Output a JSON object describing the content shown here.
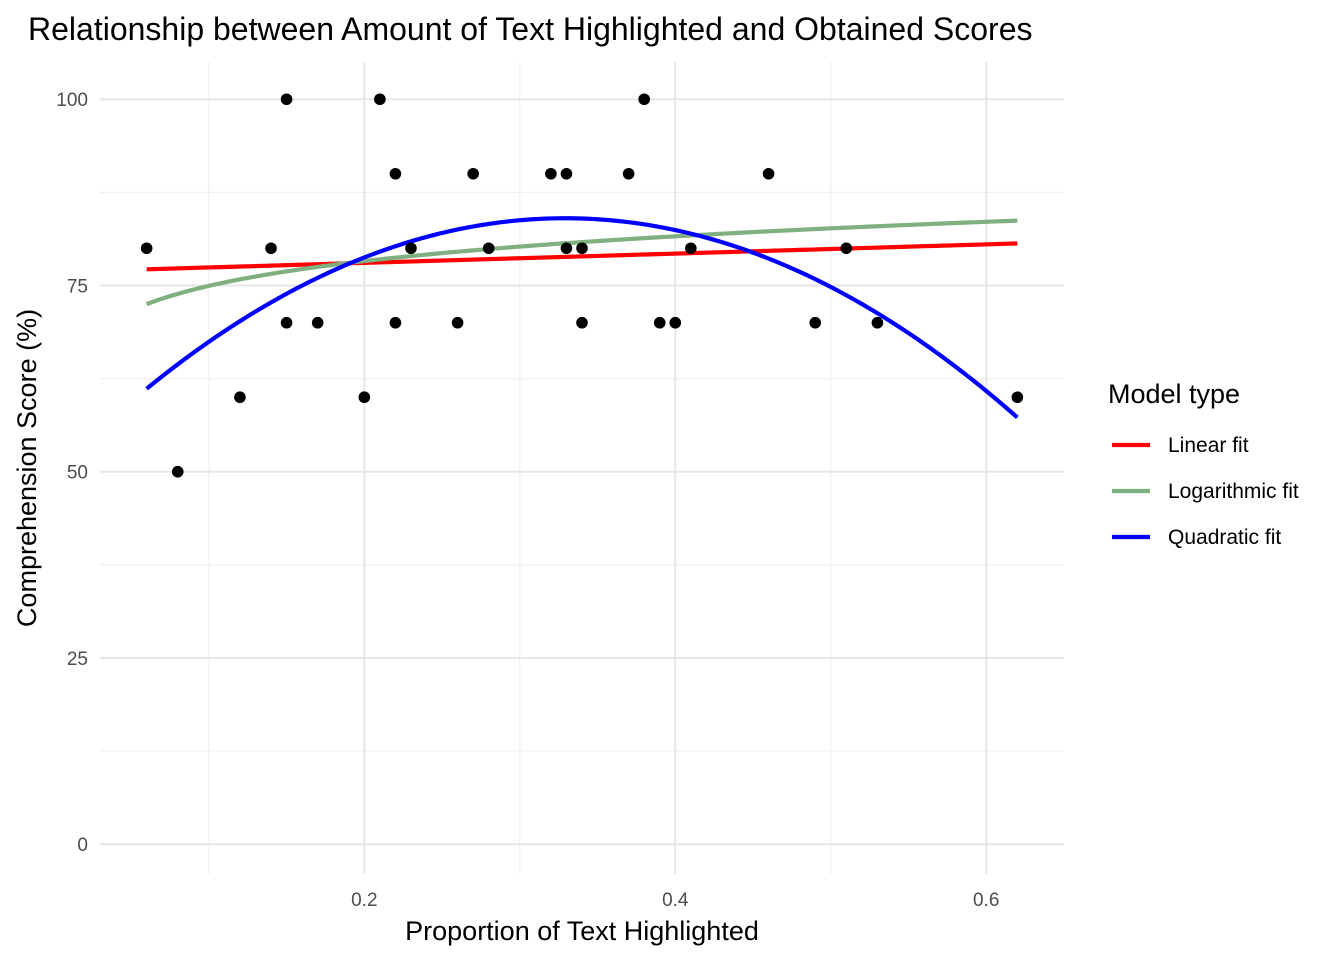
{
  "chart_data": {
    "type": "scatter",
    "title": "Relationship between Amount of Text Highlighted and Obtained Scores",
    "xlabel": "Proportion of Text Highlighted",
    "ylabel": "Comprehension Score (%)",
    "xlim": [
      0.03,
      0.65
    ],
    "ylim": [
      -4,
      105
    ],
    "x_ticks": [
      0.2,
      0.4,
      0.6
    ],
    "x_tick_labels": [
      "0.2",
      "0.4",
      "0.6"
    ],
    "y_ticks": [
      0,
      25,
      50,
      75,
      100
    ],
    "y_tick_labels": [
      "0",
      "25",
      "50",
      "75",
      "100"
    ],
    "grid": true,
    "legend": {
      "title": "Model type",
      "position": "right"
    },
    "points": {
      "x": [
        0.06,
        0.08,
        0.12,
        0.14,
        0.15,
        0.15,
        0.17,
        0.2,
        0.21,
        0.22,
        0.22,
        0.23,
        0.26,
        0.27,
        0.28,
        0.32,
        0.33,
        0.33,
        0.34,
        0.34,
        0.37,
        0.38,
        0.39,
        0.4,
        0.41,
        0.46,
        0.49,
        0.51,
        0.53,
        0.62
      ],
      "y": [
        80,
        50,
        60,
        80,
        100,
        70,
        70,
        60,
        100,
        90,
        70,
        80,
        70,
        90,
        80,
        90,
        90,
        80,
        80,
        70,
        90,
        100,
        70,
        70,
        80,
        90,
        70,
        80,
        70,
        60
      ],
      "color": "#000000"
    },
    "series": [
      {
        "name": "Linear fit",
        "type": "line",
        "color": "#ff0000",
        "model": "linear",
        "coef": [
          76.8,
          6.2
        ]
      },
      {
        "name": "Logarithmic fit",
        "type": "line",
        "color": "#7fb07f",
        "model": "log",
        "coef": [
          86.0,
          4.8
        ]
      },
      {
        "name": "Quadratic fit",
        "type": "line",
        "color": "#0000ff",
        "model": "quadratic",
        "coef": [
          49.8,
          208.0,
          -316.0
        ]
      }
    ],
    "fit_x_range": [
      0.06,
      0.62
    ]
  }
}
